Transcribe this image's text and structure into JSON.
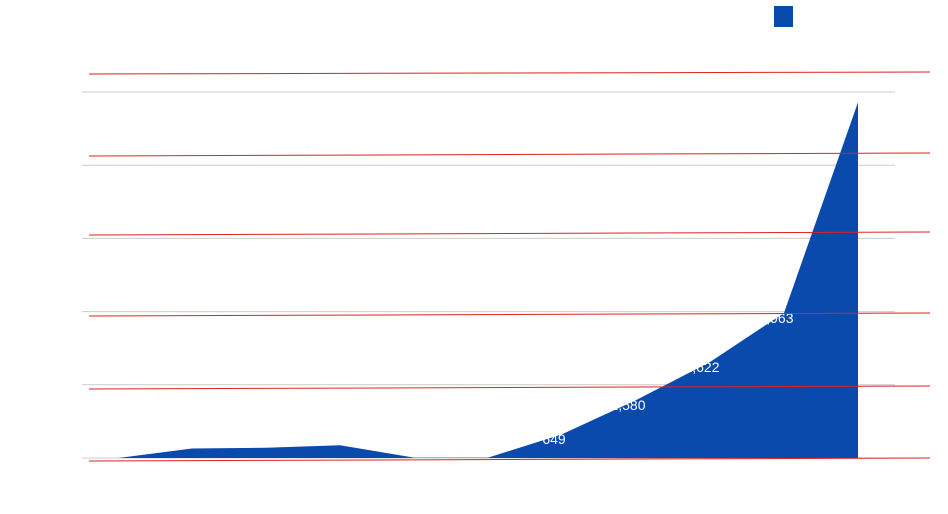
{
  "chart_data": {
    "type": "area",
    "categories": [
      "",
      "",
      "",
      "",
      "",
      "",
      "",
      "",
      "",
      "",
      ""
    ],
    "series": [
      {
        "values": [
          0,
          260,
          280,
          350,
          10,
          10,
          649,
          1580,
          2622,
          3963,
          9720
        ],
        "labels": [
          "",
          "",
          "",
          "",
          "",
          "",
          "649",
          "1,580",
          "2,622",
          "3,963",
          ""
        ]
      }
    ],
    "ylim": [
      0,
      10000
    ],
    "yticks": [
      0,
      2000,
      4000,
      6000,
      8000,
      10000
    ],
    "grid": true,
    "legend_position": "top-right"
  },
  "colors": {
    "area": "#0a4aad",
    "gridline": "#cccccc",
    "redline": "#dd2222",
    "label": "#ffffff"
  }
}
